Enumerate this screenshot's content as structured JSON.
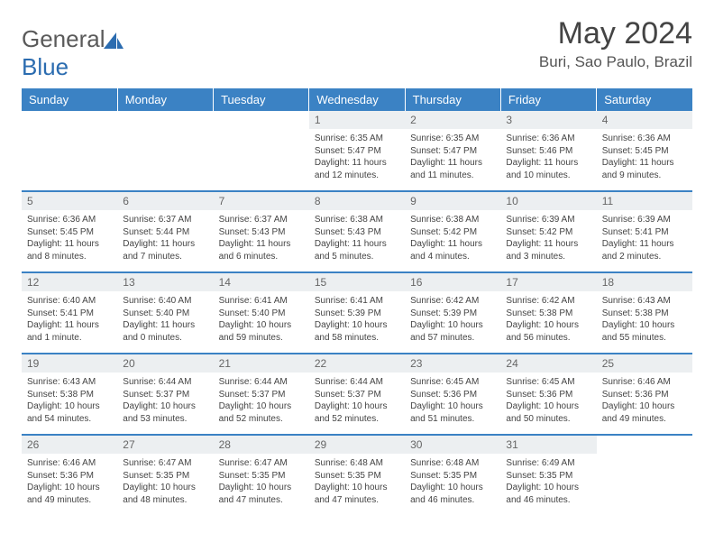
{
  "logo": {
    "text1": "General",
    "text2": "Blue"
  },
  "title": "May 2024",
  "location": "Buri, Sao Paulo, Brazil",
  "colors": {
    "header_bg": "#3b82c4",
    "header_text": "#ffffff",
    "row_border": "#3b82c4",
    "daynum_bg": "#eceff1",
    "logo_blue": "#2b6cb0",
    "text": "#444444"
  },
  "fonts": {
    "title_pt": 34,
    "location_pt": 17,
    "dayheader_pt": 13,
    "body_pt": 10
  },
  "days": [
    "Sunday",
    "Monday",
    "Tuesday",
    "Wednesday",
    "Thursday",
    "Friday",
    "Saturday"
  ],
  "weeks": [
    [
      null,
      null,
      null,
      {
        "n": "1",
        "sunrise": "6:35 AM",
        "sunset": "5:47 PM",
        "daylight": "11 hours and 12 minutes."
      },
      {
        "n": "2",
        "sunrise": "6:35 AM",
        "sunset": "5:47 PM",
        "daylight": "11 hours and 11 minutes."
      },
      {
        "n": "3",
        "sunrise": "6:36 AM",
        "sunset": "5:46 PM",
        "daylight": "11 hours and 10 minutes."
      },
      {
        "n": "4",
        "sunrise": "6:36 AM",
        "sunset": "5:45 PM",
        "daylight": "11 hours and 9 minutes."
      }
    ],
    [
      {
        "n": "5",
        "sunrise": "6:36 AM",
        "sunset": "5:45 PM",
        "daylight": "11 hours and 8 minutes."
      },
      {
        "n": "6",
        "sunrise": "6:37 AM",
        "sunset": "5:44 PM",
        "daylight": "11 hours and 7 minutes."
      },
      {
        "n": "7",
        "sunrise": "6:37 AM",
        "sunset": "5:43 PM",
        "daylight": "11 hours and 6 minutes."
      },
      {
        "n": "8",
        "sunrise": "6:38 AM",
        "sunset": "5:43 PM",
        "daylight": "11 hours and 5 minutes."
      },
      {
        "n": "9",
        "sunrise": "6:38 AM",
        "sunset": "5:42 PM",
        "daylight": "11 hours and 4 minutes."
      },
      {
        "n": "10",
        "sunrise": "6:39 AM",
        "sunset": "5:42 PM",
        "daylight": "11 hours and 3 minutes."
      },
      {
        "n": "11",
        "sunrise": "6:39 AM",
        "sunset": "5:41 PM",
        "daylight": "11 hours and 2 minutes."
      }
    ],
    [
      {
        "n": "12",
        "sunrise": "6:40 AM",
        "sunset": "5:41 PM",
        "daylight": "11 hours and 1 minute."
      },
      {
        "n": "13",
        "sunrise": "6:40 AM",
        "sunset": "5:40 PM",
        "daylight": "11 hours and 0 minutes."
      },
      {
        "n": "14",
        "sunrise": "6:41 AM",
        "sunset": "5:40 PM",
        "daylight": "10 hours and 59 minutes."
      },
      {
        "n": "15",
        "sunrise": "6:41 AM",
        "sunset": "5:39 PM",
        "daylight": "10 hours and 58 minutes."
      },
      {
        "n": "16",
        "sunrise": "6:42 AM",
        "sunset": "5:39 PM",
        "daylight": "10 hours and 57 minutes."
      },
      {
        "n": "17",
        "sunrise": "6:42 AM",
        "sunset": "5:38 PM",
        "daylight": "10 hours and 56 minutes."
      },
      {
        "n": "18",
        "sunrise": "6:43 AM",
        "sunset": "5:38 PM",
        "daylight": "10 hours and 55 minutes."
      }
    ],
    [
      {
        "n": "19",
        "sunrise": "6:43 AM",
        "sunset": "5:38 PM",
        "daylight": "10 hours and 54 minutes."
      },
      {
        "n": "20",
        "sunrise": "6:44 AM",
        "sunset": "5:37 PM",
        "daylight": "10 hours and 53 minutes."
      },
      {
        "n": "21",
        "sunrise": "6:44 AM",
        "sunset": "5:37 PM",
        "daylight": "10 hours and 52 minutes."
      },
      {
        "n": "22",
        "sunrise": "6:44 AM",
        "sunset": "5:37 PM",
        "daylight": "10 hours and 52 minutes."
      },
      {
        "n": "23",
        "sunrise": "6:45 AM",
        "sunset": "5:36 PM",
        "daylight": "10 hours and 51 minutes."
      },
      {
        "n": "24",
        "sunrise": "6:45 AM",
        "sunset": "5:36 PM",
        "daylight": "10 hours and 50 minutes."
      },
      {
        "n": "25",
        "sunrise": "6:46 AM",
        "sunset": "5:36 PM",
        "daylight": "10 hours and 49 minutes."
      }
    ],
    [
      {
        "n": "26",
        "sunrise": "6:46 AM",
        "sunset": "5:36 PM",
        "daylight": "10 hours and 49 minutes."
      },
      {
        "n": "27",
        "sunrise": "6:47 AM",
        "sunset": "5:35 PM",
        "daylight": "10 hours and 48 minutes."
      },
      {
        "n": "28",
        "sunrise": "6:47 AM",
        "sunset": "5:35 PM",
        "daylight": "10 hours and 47 minutes."
      },
      {
        "n": "29",
        "sunrise": "6:48 AM",
        "sunset": "5:35 PM",
        "daylight": "10 hours and 47 minutes."
      },
      {
        "n": "30",
        "sunrise": "6:48 AM",
        "sunset": "5:35 PM",
        "daylight": "10 hours and 46 minutes."
      },
      {
        "n": "31",
        "sunrise": "6:49 AM",
        "sunset": "5:35 PM",
        "daylight": "10 hours and 46 minutes."
      },
      null
    ]
  ],
  "labels": {
    "sunrise": "Sunrise:",
    "sunset": "Sunset:",
    "daylight": "Daylight:"
  }
}
